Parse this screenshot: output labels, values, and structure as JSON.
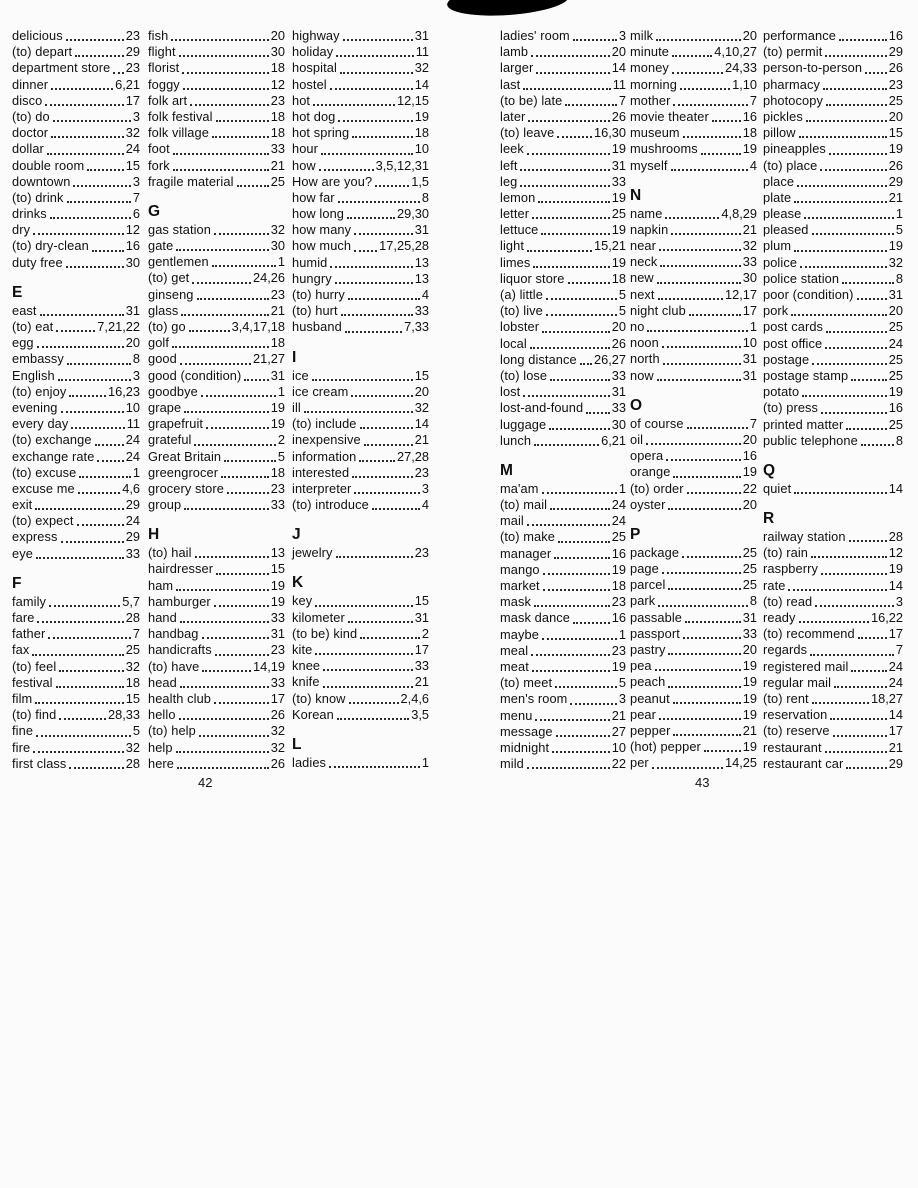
{
  "document": {
    "kind": "scanned book index spread",
    "ink_color": "#101010",
    "paper_color": "#fbfbfb",
    "artifact": "black ink smudge at top center"
  },
  "pages": [
    {
      "page_number": "42",
      "columns": [
        [
          {
            "t": "delicious",
            "p": "23"
          },
          {
            "t": "(to) depart",
            "p": "29"
          },
          {
            "t": "department store",
            "p": "23"
          },
          {
            "t": "dinner",
            "p": "6,21"
          },
          {
            "t": "disco",
            "p": "17"
          },
          {
            "t": "(to) do",
            "p": "3"
          },
          {
            "t": "doctor",
            "p": "32"
          },
          {
            "t": "dollar",
            "p": "24"
          },
          {
            "t": "double room",
            "p": "15"
          },
          {
            "t": "downtown",
            "p": "3"
          },
          {
            "t": "(to) drink",
            "p": "7"
          },
          {
            "t": "drinks",
            "p": "6"
          },
          {
            "t": "dry",
            "p": "12"
          },
          {
            "t": "(to) dry-clean",
            "p": "16"
          },
          {
            "t": "duty free",
            "p": "30"
          },
          {
            "h": "E"
          },
          {
            "t": "east",
            "p": "31"
          },
          {
            "t": "(to) eat",
            "p": "7,21,22"
          },
          {
            "t": "egg",
            "p": "20"
          },
          {
            "t": "embassy",
            "p": "8"
          },
          {
            "t": "English",
            "p": "3"
          },
          {
            "t": "(to) enjoy",
            "p": "16,23"
          },
          {
            "t": "evening",
            "p": "10"
          },
          {
            "t": "every day",
            "p": "11"
          },
          {
            "t": "(to) exchange",
            "p": "24"
          },
          {
            "t": "exchange rate",
            "p": "24"
          },
          {
            "t": "(to) excuse",
            "p": "1"
          },
          {
            "t": "excuse me",
            "p": "4,6"
          },
          {
            "t": "exit",
            "p": "29"
          },
          {
            "t": "(to) expect",
            "p": "24"
          },
          {
            "t": "express",
            "p": "29"
          },
          {
            "t": "eye",
            "p": "33"
          },
          {
            "h": "F"
          },
          {
            "t": "family",
            "p": "5,7"
          },
          {
            "t": "fare",
            "p": "28"
          },
          {
            "t": "father",
            "p": "7"
          },
          {
            "t": "fax",
            "p": "25"
          },
          {
            "t": "(to) feel",
            "p": "32"
          },
          {
            "t": "festival",
            "p": "18"
          },
          {
            "t": "film",
            "p": "15"
          },
          {
            "t": "(to) find",
            "p": "28,33"
          },
          {
            "t": "fine",
            "p": "5"
          },
          {
            "t": "fire",
            "p": "32"
          },
          {
            "t": "first class",
            "p": "28"
          }
        ],
        [
          {
            "t": "fish",
            "p": "20"
          },
          {
            "t": "flight",
            "p": "30"
          },
          {
            "t": "florist",
            "p": "18"
          },
          {
            "t": "foggy",
            "p": "12"
          },
          {
            "t": "folk art",
            "p": "23"
          },
          {
            "t": "folk festival",
            "p": "18"
          },
          {
            "t": "folk village",
            "p": "18"
          },
          {
            "t": "foot",
            "p": "33"
          },
          {
            "t": "fork",
            "p": "21"
          },
          {
            "t": "fragile material",
            "p": "25"
          },
          {
            "h": "G"
          },
          {
            "t": "gas station",
            "p": "32"
          },
          {
            "t": "gate",
            "p": "30"
          },
          {
            "t": "gentlemen",
            "p": "1"
          },
          {
            "t": "(to) get",
            "p": "24,26"
          },
          {
            "t": "ginseng",
            "p": "23"
          },
          {
            "t": "glass",
            "p": "21"
          },
          {
            "t": "(to) go",
            "p": "3,4,17,18"
          },
          {
            "t": "golf",
            "p": "18"
          },
          {
            "t": "good",
            "p": "21,27"
          },
          {
            "t": "good (condition)",
            "p": "31"
          },
          {
            "t": "goodbye",
            "p": "1"
          },
          {
            "t": "grape",
            "p": "19"
          },
          {
            "t": "grapefruit",
            "p": "19"
          },
          {
            "t": "grateful",
            "p": "2"
          },
          {
            "t": "Great Britain",
            "p": "5"
          },
          {
            "t": "greengrocer",
            "p": "18"
          },
          {
            "t": "grocery store",
            "p": "23"
          },
          {
            "t": "group",
            "p": "33"
          },
          {
            "h": "H"
          },
          {
            "t": "(to) hail",
            "p": "13"
          },
          {
            "t": "hairdresser",
            "p": "15"
          },
          {
            "t": "ham",
            "p": "19"
          },
          {
            "t": "hamburger",
            "p": "19"
          },
          {
            "t": "hand",
            "p": "33"
          },
          {
            "t": "handbag",
            "p": "31"
          },
          {
            "t": "handicrafts",
            "p": "23"
          },
          {
            "t": "(to) have",
            "p": "14,19"
          },
          {
            "t": "head",
            "p": "33"
          },
          {
            "t": "health club",
            "p": "17"
          },
          {
            "t": "hello",
            "p": "26"
          },
          {
            "t": "(to) help",
            "p": "32"
          },
          {
            "t": "help",
            "p": "32"
          },
          {
            "t": "here",
            "p": "26"
          }
        ],
        [
          {
            "t": "highway",
            "p": "31"
          },
          {
            "t": "holiday",
            "p": "11"
          },
          {
            "t": "hospital",
            "p": "32"
          },
          {
            "t": "hostel",
            "p": "14"
          },
          {
            "t": "hot",
            "p": "12,15"
          },
          {
            "t": "hot dog",
            "p": "19"
          },
          {
            "t": "hot spring",
            "p": "18"
          },
          {
            "t": "hour",
            "p": "10"
          },
          {
            "t": "how",
            "p": "3,5,12,31"
          },
          {
            "t": "How are you?",
            "p": "1,5"
          },
          {
            "t": "how far",
            "p": "8"
          },
          {
            "t": "how long",
            "p": "29,30"
          },
          {
            "t": "how many",
            "p": "31"
          },
          {
            "t": "how much",
            "p": "17,25,28"
          },
          {
            "t": "humid",
            "p": "13"
          },
          {
            "t": "hungry",
            "p": "13"
          },
          {
            "t": "(to) hurry",
            "p": "4"
          },
          {
            "t": "(to) hurt",
            "p": "33"
          },
          {
            "t": "husband",
            "p": "7,33"
          },
          {
            "h": "I"
          },
          {
            "t": "ice",
            "p": "15"
          },
          {
            "t": "ice cream",
            "p": "20"
          },
          {
            "t": "ill",
            "p": "32"
          },
          {
            "t": "(to) include",
            "p": "14"
          },
          {
            "t": "inexpensive",
            "p": "21"
          },
          {
            "t": "information",
            "p": "27,28"
          },
          {
            "t": "interested",
            "p": "23"
          },
          {
            "t": "interpreter",
            "p": "3"
          },
          {
            "t": "(to) introduce",
            "p": "4"
          },
          {
            "h": "J"
          },
          {
            "t": "jewelry",
            "p": "23"
          },
          {
            "h": "K"
          },
          {
            "t": "key",
            "p": "15"
          },
          {
            "t": "kilometer",
            "p": "31"
          },
          {
            "t": "(to be) kind",
            "p": "2"
          },
          {
            "t": "kite",
            "p": "17"
          },
          {
            "t": "knee",
            "p": "33"
          },
          {
            "t": "knife",
            "p": "21"
          },
          {
            "t": "(to) know",
            "p": "2,4,6"
          },
          {
            "t": "Korean",
            "p": "3,5"
          },
          {
            "h": "L"
          },
          {
            "t": "ladies",
            "p": "1"
          }
        ]
      ]
    },
    {
      "page_number": "43",
      "columns": [
        [
          {
            "t": "ladies' room",
            "p": "3"
          },
          {
            "t": "lamb",
            "p": "20"
          },
          {
            "t": "larger",
            "p": "14"
          },
          {
            "t": "last",
            "p": "11"
          },
          {
            "t": "(to be) late",
            "p": "7"
          },
          {
            "t": "later",
            "p": "26"
          },
          {
            "t": "(to) leave",
            "p": "16,30"
          },
          {
            "t": "leek",
            "p": "19"
          },
          {
            "t": "left",
            "p": "31"
          },
          {
            "t": "leg",
            "p": "33"
          },
          {
            "t": "lemon",
            "p": "19"
          },
          {
            "t": "letter",
            "p": "25"
          },
          {
            "t": "lettuce",
            "p": "19"
          },
          {
            "t": "light",
            "p": "15,21"
          },
          {
            "t": "limes",
            "p": "19"
          },
          {
            "t": "liquor store",
            "p": "18"
          },
          {
            "t": "(a) little",
            "p": "5"
          },
          {
            "t": "(to) live",
            "p": "5"
          },
          {
            "t": "lobster",
            "p": "20"
          },
          {
            "t": "local",
            "p": "26"
          },
          {
            "t": "long distance",
            "p": "26,27"
          },
          {
            "t": "(to) lose",
            "p": "33"
          },
          {
            "t": "lost",
            "p": "31"
          },
          {
            "t": "lost-and-found",
            "p": "33"
          },
          {
            "t": "luggage",
            "p": "30"
          },
          {
            "t": "lunch",
            "p": "6,21"
          },
          {
            "h": "M"
          },
          {
            "t": "ma'am",
            "p": "1"
          },
          {
            "t": "(to) mail",
            "p": "24"
          },
          {
            "t": "mail",
            "p": "24"
          },
          {
            "t": "(to) make",
            "p": "25"
          },
          {
            "t": "manager",
            "p": "16"
          },
          {
            "t": "mango",
            "p": "19"
          },
          {
            "t": "market",
            "p": "18"
          },
          {
            "t": "mask",
            "p": "23"
          },
          {
            "t": "mask dance",
            "p": "16"
          },
          {
            "t": "maybe",
            "p": "1"
          },
          {
            "t": "meal",
            "p": "23"
          },
          {
            "t": "meat",
            "p": "19"
          },
          {
            "t": "(to) meet",
            "p": "5"
          },
          {
            "t": "men's room",
            "p": "3"
          },
          {
            "t": "menu",
            "p": "21"
          },
          {
            "t": "message",
            "p": "27"
          },
          {
            "t": "midnight",
            "p": "10"
          },
          {
            "t": "mild",
            "p": "22"
          }
        ],
        [
          {
            "t": "milk",
            "p": "20"
          },
          {
            "t": "minute",
            "p": "4,10,27"
          },
          {
            "t": "money",
            "p": "24,33"
          },
          {
            "t": "morning",
            "p": "1,10"
          },
          {
            "t": "mother",
            "p": "7"
          },
          {
            "t": "movie theater",
            "p": "16"
          },
          {
            "t": "museum",
            "p": "18"
          },
          {
            "t": "mushrooms",
            "p": "19"
          },
          {
            "t": "myself",
            "p": "4"
          },
          {
            "h": "N"
          },
          {
            "t": "name",
            "p": "4,8,29"
          },
          {
            "t": "napkin",
            "p": "21"
          },
          {
            "t": "near",
            "p": "32"
          },
          {
            "t": "neck",
            "p": "33"
          },
          {
            "t": "new",
            "p": "30"
          },
          {
            "t": "next",
            "p": "12,17"
          },
          {
            "t": "night club",
            "p": "17"
          },
          {
            "t": "no",
            "p": "1"
          },
          {
            "t": "noon",
            "p": "10"
          },
          {
            "t": "north",
            "p": "31"
          },
          {
            "t": "now",
            "p": "31"
          },
          {
            "h": "O"
          },
          {
            "t": "of course",
            "p": "7"
          },
          {
            "t": "oil",
            "p": "20"
          },
          {
            "t": "opera",
            "p": "16"
          },
          {
            "t": "orange",
            "p": "19"
          },
          {
            "t": "(to) order",
            "p": "22"
          },
          {
            "t": "oyster",
            "p": "20"
          },
          {
            "h": "P"
          },
          {
            "t": "package",
            "p": "25"
          },
          {
            "t": "page",
            "p": "25"
          },
          {
            "t": "parcel",
            "p": "25"
          },
          {
            "t": "park",
            "p": "8"
          },
          {
            "t": "passable",
            "p": "31"
          },
          {
            "t": "passport",
            "p": "33"
          },
          {
            "t": "pastry",
            "p": "20"
          },
          {
            "t": "pea",
            "p": "19"
          },
          {
            "t": "peach",
            "p": "19"
          },
          {
            "t": "peanut",
            "p": "19"
          },
          {
            "t": "pear",
            "p": "19"
          },
          {
            "t": "pepper",
            "p": "21"
          },
          {
            "t": "(hot) pepper",
            "p": "19"
          },
          {
            "t": "per",
            "p": "14,25"
          }
        ],
        [
          {
            "t": "performance",
            "p": "16"
          },
          {
            "t": "(to) permit",
            "p": "29"
          },
          {
            "t": "person-to-person",
            "p": "26"
          },
          {
            "t": "pharmacy",
            "p": "23"
          },
          {
            "t": "photocopy",
            "p": "25"
          },
          {
            "t": "pickles",
            "p": "20"
          },
          {
            "t": "pillow",
            "p": "15"
          },
          {
            "t": "pineapples",
            "p": "19"
          },
          {
            "t": "(to) place",
            "p": "26"
          },
          {
            "t": "place",
            "p": "29"
          },
          {
            "t": "plate",
            "p": "21"
          },
          {
            "t": "please",
            "p": "1"
          },
          {
            "t": "pleased",
            "p": "5"
          },
          {
            "t": "plum",
            "p": "19"
          },
          {
            "t": "police",
            "p": "32"
          },
          {
            "t": "police station",
            "p": "8"
          },
          {
            "t": "poor (condition)",
            "p": "31"
          },
          {
            "t": "pork",
            "p": "20"
          },
          {
            "t": "post cards",
            "p": "25"
          },
          {
            "t": "post office",
            "p": "24"
          },
          {
            "t": "postage",
            "p": "25"
          },
          {
            "t": "postage stamp",
            "p": "25"
          },
          {
            "t": "potato",
            "p": "19"
          },
          {
            "t": "(to) press",
            "p": "16"
          },
          {
            "t": "printed matter",
            "p": "25"
          },
          {
            "t": "public telephone",
            "p": "8"
          },
          {
            "h": "Q"
          },
          {
            "t": "quiet",
            "p": "14"
          },
          {
            "h": "R"
          },
          {
            "t": "railway station",
            "p": "28"
          },
          {
            "t": "(to) rain",
            "p": "12"
          },
          {
            "t": "raspberry",
            "p": "19"
          },
          {
            "t": "rate",
            "p": "14"
          },
          {
            "t": "(to) read",
            "p": "3"
          },
          {
            "t": "ready",
            "p": "16,22"
          },
          {
            "t": "(to) recommend",
            "p": "17"
          },
          {
            "t": "regards",
            "p": "7"
          },
          {
            "t": "registered mail",
            "p": "24"
          },
          {
            "t": "regular mail",
            "p": "24"
          },
          {
            "t": "(to) rent",
            "p": "18,27"
          },
          {
            "t": "reservation",
            "p": "14"
          },
          {
            "t": "(to) reserve",
            "p": "17"
          },
          {
            "t": "restaurant",
            "p": "21"
          },
          {
            "t": "restaurant car",
            "p": "29"
          }
        ]
      ]
    }
  ]
}
